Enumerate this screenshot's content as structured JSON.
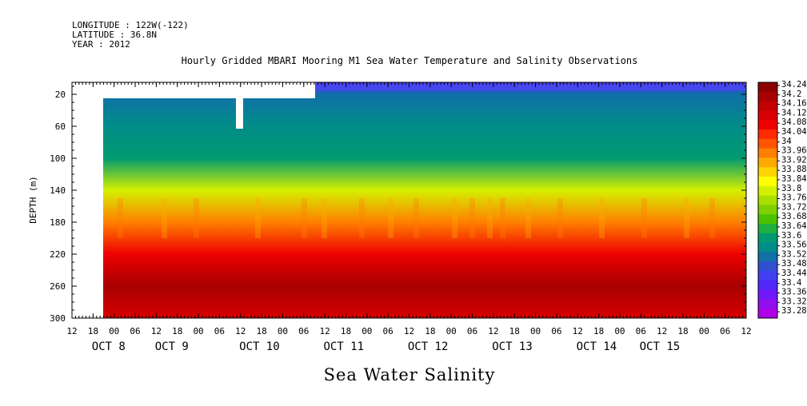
{
  "header": {
    "longitude": "LONGITUDE : 122W(-122)",
    "latitude": "LATITUDE : 36.8N",
    "year": "YEAR : 2012"
  },
  "chart_title": "Hourly Gridded MBARI Mooring M1 Sea Water Temperature and Salinity Observations",
  "bottom_title": "Sea Water Salinity",
  "chart_data": {
    "type": "heatmap",
    "variable": "Sea Water Salinity",
    "ylabel": "DEPTH (m)",
    "y_axis": {
      "ticks": [
        20,
        60,
        100,
        140,
        180,
        220,
        260,
        300
      ],
      "range": [
        300,
        5
      ]
    },
    "x_axis": {
      "hour_ticks": [
        "12",
        "18",
        "00",
        "06",
        "12",
        "18",
        "00",
        "06",
        "12",
        "18",
        "00",
        "06",
        "12",
        "18",
        "00",
        "06",
        "12",
        "18",
        "00",
        "06",
        "12",
        "18",
        "00",
        "06",
        "12",
        "18",
        "00",
        "06",
        "12",
        "18",
        "00",
        "06",
        "12"
      ],
      "day_labels": [
        {
          "label": "OCT  8",
          "tick": 2
        },
        {
          "label": "OCT  9",
          "tick": 5
        },
        {
          "label": "OCT 10",
          "tick": 9
        },
        {
          "label": "OCT 11",
          "tick": 13
        },
        {
          "label": "OCT 12",
          "tick": 17
        },
        {
          "label": "OCT 13",
          "tick": 21
        },
        {
          "label": "OCT 14",
          "tick": 25
        },
        {
          "label": "OCT 15",
          "tick": 28
        }
      ]
    },
    "colorbar": {
      "levels": [
        "34.24",
        "34.2",
        "34.16",
        "34.12",
        "34.08",
        "34.04",
        "34",
        "33.96",
        "33.92",
        "33.88",
        "33.84",
        "33.8",
        "33.76",
        "33.72",
        "33.68",
        "33.64",
        "33.6",
        "33.56",
        "33.52",
        "33.48",
        "33.44",
        "33.4",
        "33.36",
        "33.32",
        "33.28"
      ],
      "colors": [
        "#8b0000",
        "#a80000",
        "#c20000",
        "#d80000",
        "#ee0000",
        "#ff2a00",
        "#ff5500",
        "#ff7f00",
        "#ffaa00",
        "#ffd400",
        "#ffff00",
        "#d4f000",
        "#aae000",
        "#7fd000",
        "#4cc200",
        "#1fb040",
        "#009a70",
        "#008c88",
        "#1070a8",
        "#3050d0",
        "#4040f0",
        "#5028f8",
        "#7018f8",
        "#9010f0",
        "#b000e8"
      ]
    },
    "profile": [
      {
        "depth": 20,
        "salinity": 33.5
      },
      {
        "depth": 60,
        "salinity": 33.56
      },
      {
        "depth": 100,
        "salinity": 33.62
      },
      {
        "depth": 140,
        "salinity": 33.78
      },
      {
        "depth": 180,
        "salinity": 33.96
      },
      {
        "depth": 220,
        "salinity": 34.08
      },
      {
        "depth": 260,
        "salinity": 34.18
      },
      {
        "depth": 300,
        "salinity": 34.12
      }
    ],
    "surface_low": {
      "depth": 10,
      "salinity": 33.42
    },
    "missing_data": "no data before OCT 7 18:00; no data 5-20 m until OCT 11 00:00; gap at OCT 10 06:00 above 60 m"
  }
}
